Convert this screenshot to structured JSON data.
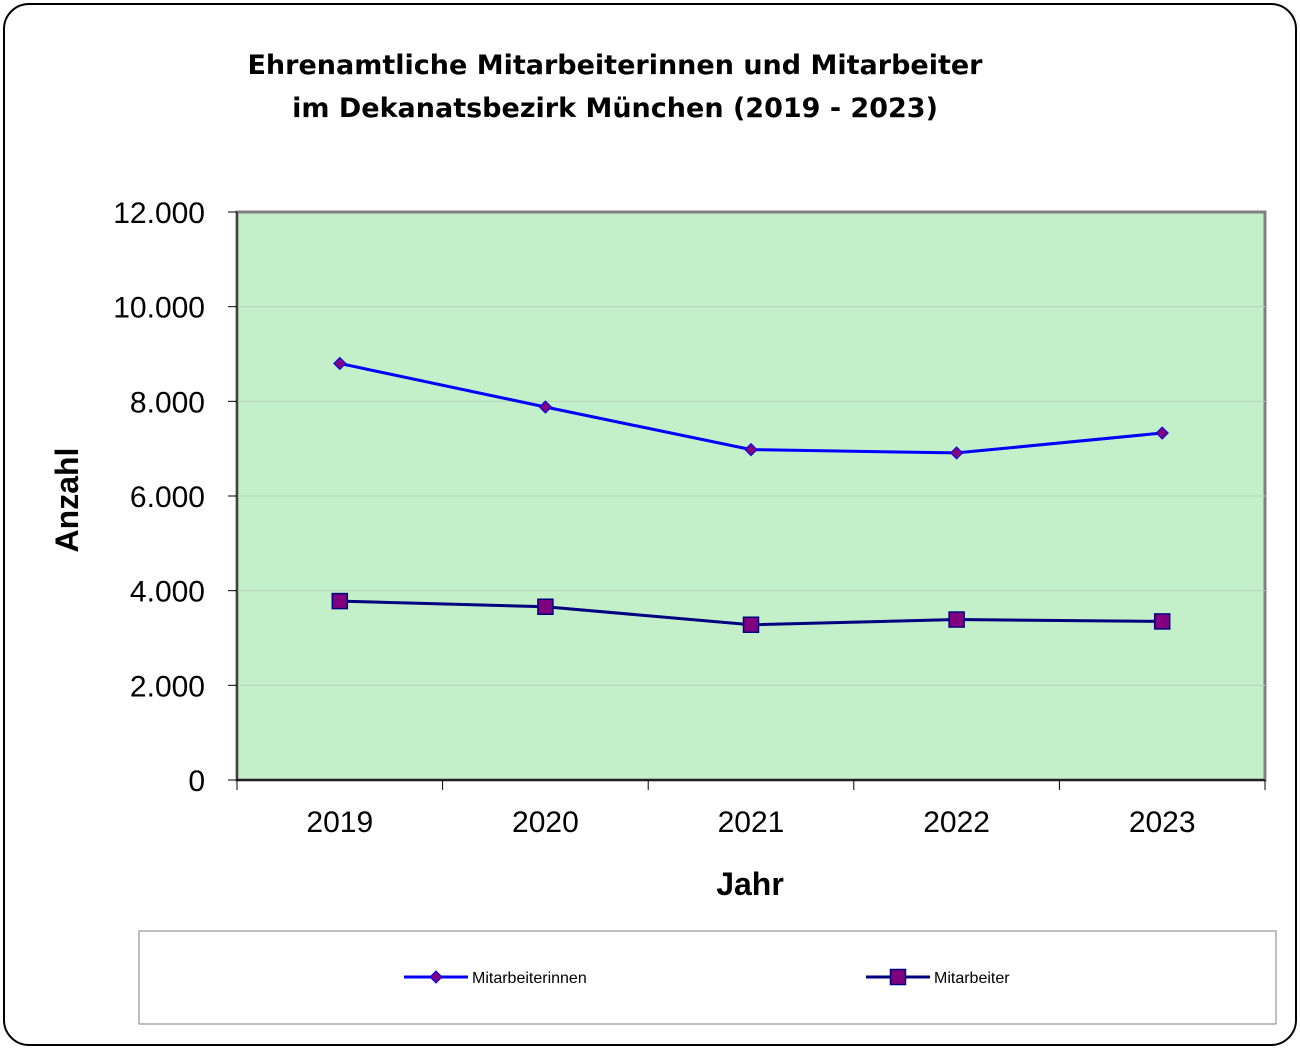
{
  "chart_data": {
    "type": "line",
    "title_lines": [
      "Ehrenamtliche Mitarbeiterinnen und Mitarbeiter",
      "im Dekanatsbezirk München (2019 - 2023)"
    ],
    "xlabel": "Jahr",
    "ylabel": "Anzahl",
    "categories": [
      "2019",
      "2020",
      "2021",
      "2022",
      "2023"
    ],
    "y_ticks": [
      "0",
      "2.000",
      "4.000",
      "6.000",
      "8.000",
      "10.000",
      "12.000"
    ],
    "ylim": [
      0,
      12000
    ],
    "grid": true,
    "legend_position": "bottom",
    "series": [
      {
        "name": "Mitarbeiterinnen",
        "values": [
          8800,
          7880,
          6980,
          6910,
          7330
        ],
        "color": "#0000ff",
        "marker": "diamond",
        "marker_color": "#800080"
      },
      {
        "name": "Mitarbeiter",
        "values": [
          3780,
          3660,
          3280,
          3390,
          3350
        ],
        "color": "#000080",
        "marker": "square",
        "marker_color": "#800080"
      }
    ],
    "plot_background": "#c3efc9"
  }
}
